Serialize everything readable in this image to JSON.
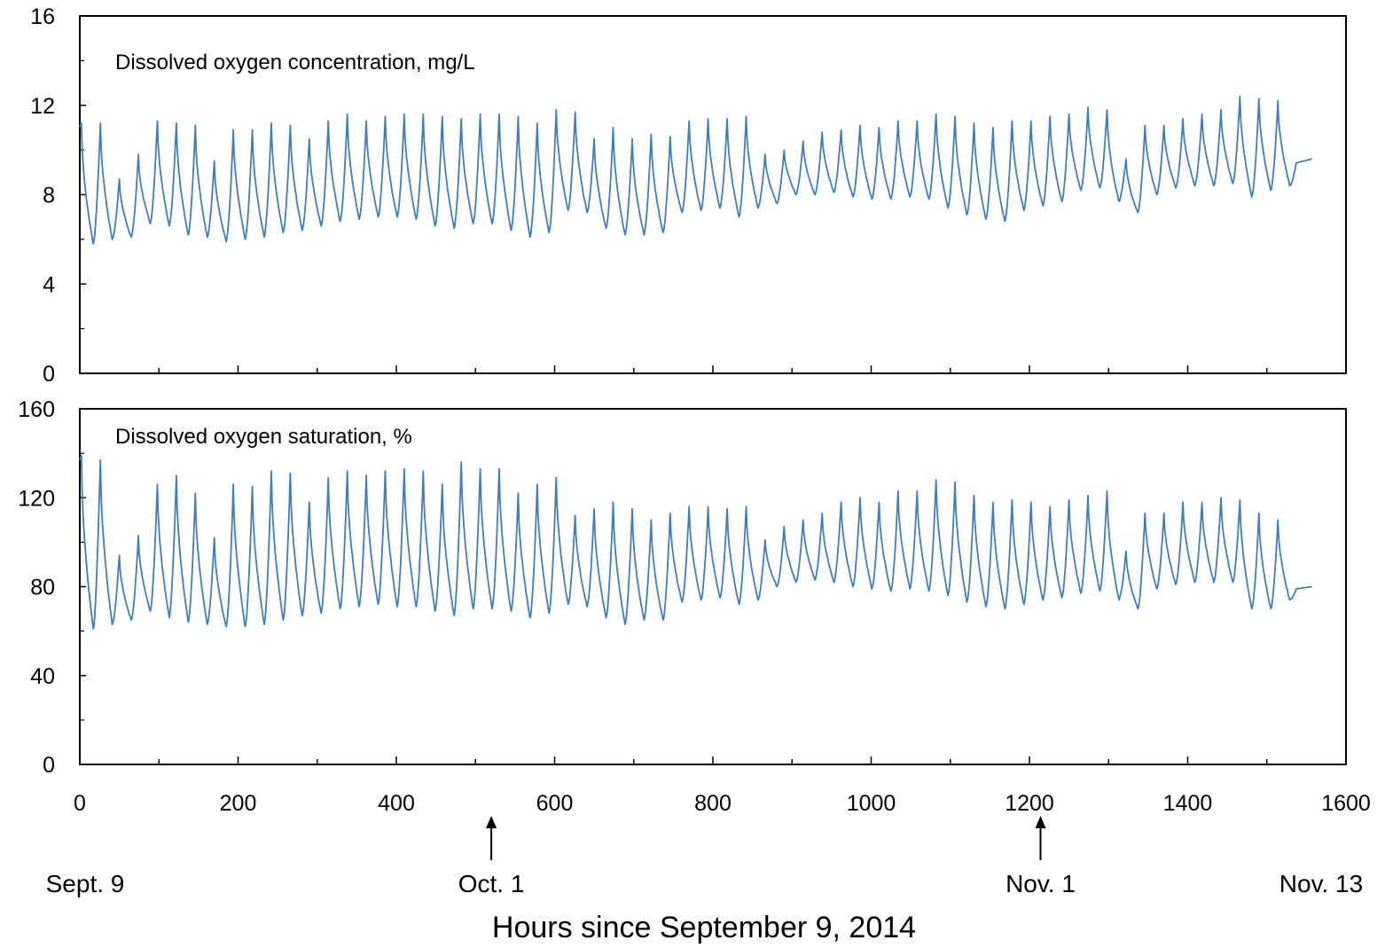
{
  "chart_data": {
    "xlabel": "Hours since September 9, 2014",
    "x_ticks": [
      "0",
      "200",
      "400",
      "600",
      "800",
      "1000",
      "1200",
      "1400",
      "1600"
    ],
    "x_tick_values": [
      0,
      200,
      400,
      600,
      800,
      1000,
      1200,
      1400,
      1600
    ],
    "xlim": [
      0,
      1600
    ],
    "date_markers": [
      {
        "label": "Sept. 9",
        "hour": 0,
        "arrow": false
      },
      {
        "label": "Oct. 1",
        "hour": 520,
        "arrow": true
      },
      {
        "label": "Nov. 1",
        "hour": 1214,
        "arrow": true
      },
      {
        "label": "Nov. 13",
        "hour": 1560,
        "arrow": false
      }
    ],
    "colors": {
      "series": "#3a7fc4",
      "axes": "#000000"
    },
    "panels": [
      {
        "type": "line",
        "annotation": "Dissolved oxygen concentration, mg/L",
        "ylim": [
          0,
          16
        ],
        "y_ticks": [
          "0",
          "4",
          "8",
          "12",
          "16"
        ],
        "y_tick_values": [
          0,
          4,
          8,
          12,
          16
        ],
        "grid": false,
        "cycle_hours": 24,
        "first_peak_hour": 2,
        "daily_max": [
          11.2,
          11.2,
          8.7,
          9.8,
          11.3,
          11.2,
          11.1,
          9.5,
          10.9,
          10.9,
          11.2,
          11.1,
          10.5,
          11.3,
          11.6,
          11.3,
          11.5,
          11.6,
          11.6,
          11.5,
          11.4,
          11.6,
          11.6,
          11.5,
          11.2,
          11.8,
          11.7,
          10.5,
          11.0,
          10.5,
          10.7,
          10.6,
          11.3,
          11.4,
          11.4,
          11.5,
          9.8,
          10.0,
          10.4,
          10.8,
          10.9,
          11.1,
          11.0,
          11.3,
          11.3,
          11.6,
          11.5,
          11.2,
          11.0,
          11.3,
          11.3,
          11.5,
          11.6,
          11.9,
          11.8,
          9.6,
          11.1,
          11.1,
          11.4,
          11.6,
          11.8,
          12.4,
          12.3,
          12.2
        ],
        "daily_min": [
          5.8,
          6.0,
          6.1,
          6.7,
          6.6,
          6.2,
          6.1,
          5.9,
          6.0,
          6.1,
          6.3,
          6.4,
          6.6,
          6.8,
          6.9,
          7.0,
          7.0,
          6.9,
          6.6,
          6.5,
          6.7,
          6.7,
          6.4,
          6.1,
          6.3,
          7.3,
          7.2,
          6.5,
          6.2,
          6.2,
          6.3,
          7.2,
          7.3,
          7.4,
          7.0,
          7.4,
          7.6,
          8.0,
          8.0,
          8.1,
          7.9,
          7.8,
          7.8,
          7.9,
          7.8,
          7.4,
          7.1,
          6.9,
          6.8,
          7.3,
          7.5,
          7.7,
          8.2,
          8.3,
          7.7,
          7.2,
          8.0,
          8.3,
          8.4,
          8.4,
          8.5,
          7.9,
          8.2,
          8.4
        ],
        "end_hour": 1557,
        "end_value": 9.6
      },
      {
        "type": "line",
        "annotation": "Dissolved oxygen saturation, %",
        "ylim": [
          0,
          160
        ],
        "y_ticks": [
          "0",
          "40",
          "80",
          "120",
          "160"
        ],
        "y_tick_values": [
          0,
          40,
          80,
          120,
          160
        ],
        "grid": false,
        "cycle_hours": 24,
        "first_peak_hour": 2,
        "daily_max": [
          139,
          137,
          94,
          103,
          126,
          130,
          122,
          102,
          126,
          125,
          132,
          131,
          118,
          129,
          132,
          130,
          132,
          133,
          132,
          126,
          136,
          133,
          133,
          122,
          126,
          129,
          112,
          115,
          118,
          115,
          110,
          113,
          116,
          116,
          115,
          116,
          101,
          107,
          110,
          113,
          118,
          120,
          118,
          123,
          123,
          128,
          127,
          121,
          118,
          119,
          118,
          116,
          119,
          121,
          123,
          96,
          113,
          113,
          118,
          118,
          120,
          119,
          113,
          110
        ],
        "daily_min": [
          61,
          63,
          65,
          69,
          66,
          64,
          63,
          62,
          62,
          63,
          65,
          67,
          68,
          70,
          71,
          72,
          71,
          71,
          69,
          67,
          70,
          70,
          69,
          66,
          68,
          72,
          71,
          66,
          63,
          65,
          65,
          73,
          74,
          75,
          72,
          74,
          80,
          82,
          83,
          82,
          80,
          79,
          78,
          79,
          78,
          76,
          73,
          71,
          70,
          72,
          74,
          75,
          77,
          78,
          74,
          70,
          79,
          81,
          82,
          82,
          82,
          70,
          70,
          74
        ],
        "end_hour": 1557,
        "end_value": 80
      }
    ]
  }
}
